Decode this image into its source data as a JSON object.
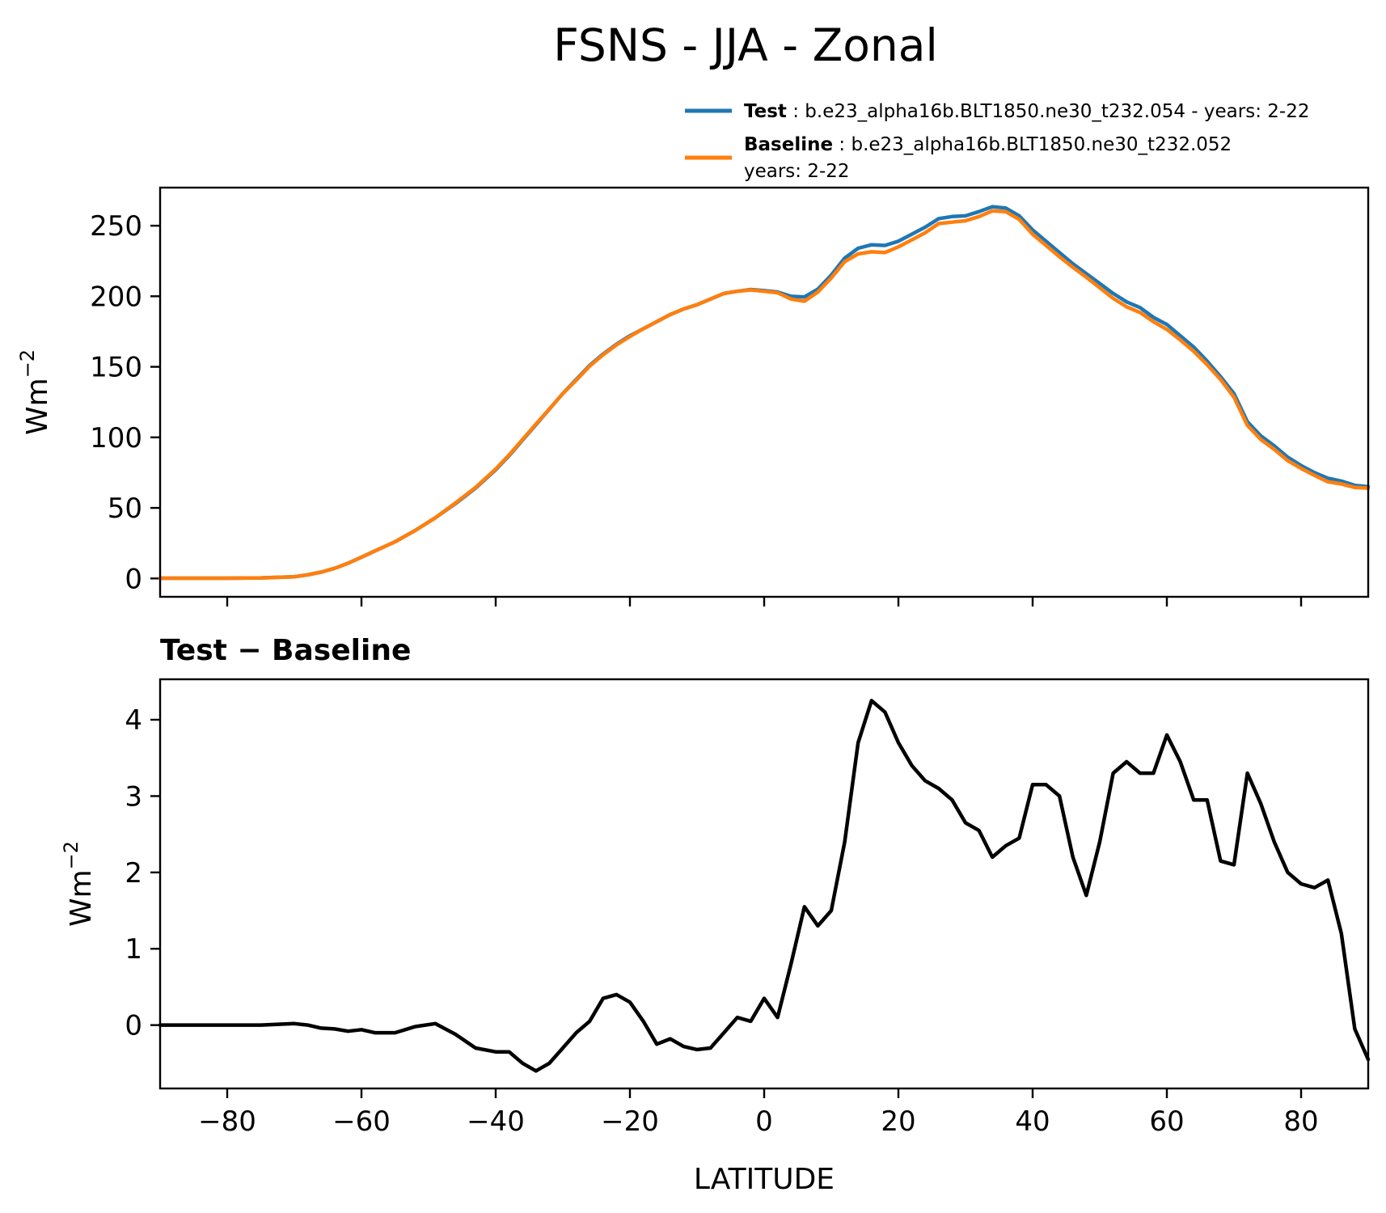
{
  "chart_data": [
    {
      "type": "line",
      "title": "FSNS - JJA - Zonal",
      "ylabel": "Wm",
      "ylabel_sup": "−2",
      "xlim": [
        -90,
        90
      ],
      "ylim": [
        -13,
        277
      ],
      "yticks": [
        0,
        50,
        100,
        150,
        200,
        250
      ],
      "legend": [
        {
          "label": "Test",
          "text": ": b.e23_alpha16b.BLT1850.ne30_t232.054 - years: 2-22",
          "text2": "",
          "color": "#1f77b4"
        },
        {
          "label": "Baseline",
          "text": ": b.e23_alpha16b.BLT1850.ne30_t232.052",
          "text2": "years: 2-22",
          "color": "#ff7f0e"
        }
      ],
      "x": [
        -90,
        -85,
        -80,
        -75,
        -70,
        -68,
        -66,
        -64,
        -62,
        -60,
        -58,
        -55,
        -52,
        -49,
        -46,
        -43,
        -40,
        -38,
        -36,
        -34,
        -32,
        -30,
        -28,
        -26,
        -24,
        -22,
        -20,
        -18,
        -16,
        -14,
        -12,
        -10,
        -8,
        -6,
        -4,
        -2,
        0,
        2,
        4,
        6,
        8,
        10,
        12,
        14,
        16,
        18,
        20,
        22,
        24,
        26,
        28,
        30,
        32,
        34,
        36,
        38,
        40,
        42,
        44,
        46,
        48,
        50,
        52,
        54,
        56,
        58,
        60,
        62,
        64,
        66,
        68,
        70,
        72,
        74,
        76,
        78,
        80,
        82,
        84,
        86,
        88,
        90
      ],
      "series": [
        {
          "name": "Test",
          "color": "#1f77b4",
          "values": [
            0.2,
            0.2,
            0.2,
            0.4,
            1.2,
            2.6,
            4.5,
            7.2,
            10.8,
            15,
            19.5,
            26,
            34,
            43,
            53,
            64,
            77,
            87,
            98,
            109,
            120,
            131,
            141,
            151,
            159,
            166,
            172,
            177,
            182,
            187,
            191,
            194,
            198,
            202,
            203.5,
            204.8,
            204,
            203,
            200,
            199.5,
            205,
            215,
            227,
            234,
            236.5,
            236,
            239,
            244,
            249,
            255,
            256.5,
            257,
            260,
            263.5,
            262.5,
            257,
            247,
            239,
            231,
            223,
            216,
            209,
            202,
            196,
            192,
            185,
            180,
            172,
            164,
            154,
            143,
            131,
            111,
            101,
            94,
            86,
            80,
            75,
            71,
            69,
            66,
            65
          ]
        },
        {
          "name": "Baseline",
          "color": "#ff7f0e",
          "values": [
            0.2,
            0.2,
            0.2,
            0.4,
            1.2,
            2.6,
            4.5,
            7.2,
            10.8,
            15,
            19.5,
            26,
            34,
            43,
            53.5,
            64.5,
            77.5,
            87.5,
            98.5,
            109.5,
            120,
            131,
            140.5,
            150.5,
            158.5,
            165.5,
            171.5,
            177,
            182,
            187,
            191,
            194,
            198,
            202,
            203.5,
            204.5,
            203.5,
            202.5,
            198,
            196.5,
            203,
            213,
            224.5,
            230,
            231.5,
            231,
            235,
            240,
            245,
            251.5,
            252.5,
            253.5,
            256.5,
            260.5,
            260,
            254.5,
            244,
            236,
            228,
            220.5,
            213.5,
            206,
            198.5,
            192.5,
            188.5,
            182,
            176.5,
            169,
            161,
            151.5,
            141,
            128.5,
            108.5,
            98.5,
            91.5,
            83.5,
            78,
            73,
            68.5,
            67,
            64.5,
            64
          ]
        }
      ]
    },
    {
      "type": "line",
      "title": "Test − Baseline",
      "xlabel": "LATITUDE",
      "ylabel": "Wm",
      "ylabel_sup": "−2",
      "xlim": [
        -90,
        90
      ],
      "ylim": [
        -0.83,
        4.53
      ],
      "yticks": [
        0,
        1,
        2,
        3,
        4
      ],
      "xticks": [
        -80,
        -60,
        -40,
        -20,
        0,
        20,
        40,
        60,
        80
      ],
      "xtick_labels": [
        "−80",
        "−60",
        "−40",
        "−20",
        "0",
        "20",
        "40",
        "60",
        "80"
      ],
      "series": [
        {
          "name": "Test − Baseline",
          "color": "#000000",
          "values": [
            0,
            0,
            0,
            0,
            0.02,
            0,
            -0.04,
            -0.05,
            -0.08,
            -0.06,
            -0.1,
            -0.1,
            -0.02,
            0.02,
            -0.12,
            -0.3,
            -0.35,
            -0.35,
            -0.5,
            -0.6,
            -0.5,
            -0.3,
            -0.1,
            0.05,
            0.35,
            0.4,
            0.3,
            0.05,
            -0.25,
            -0.18,
            -0.28,
            -0.32,
            -0.3,
            -0.1,
            0.1,
            0.05,
            0.35,
            0.1,
            0.8,
            1.55,
            1.3,
            1.5,
            2.4,
            3.7,
            4.25,
            4.1,
            3.7,
            3.4,
            3.2,
            3.1,
            2.95,
            2.65,
            2.55,
            2.2,
            2.35,
            2.45,
            3.15,
            3.15,
            3.0,
            2.2,
            1.7,
            2.4,
            3.3,
            3.45,
            3.3,
            3.3,
            3.8,
            3.45,
            2.95,
            2.95,
            2.15,
            2.1,
            3.3,
            2.9,
            2.4,
            2.0,
            1.85,
            1.8,
            1.9,
            1.2,
            -0.05,
            -0.45
          ]
        }
      ]
    }
  ]
}
